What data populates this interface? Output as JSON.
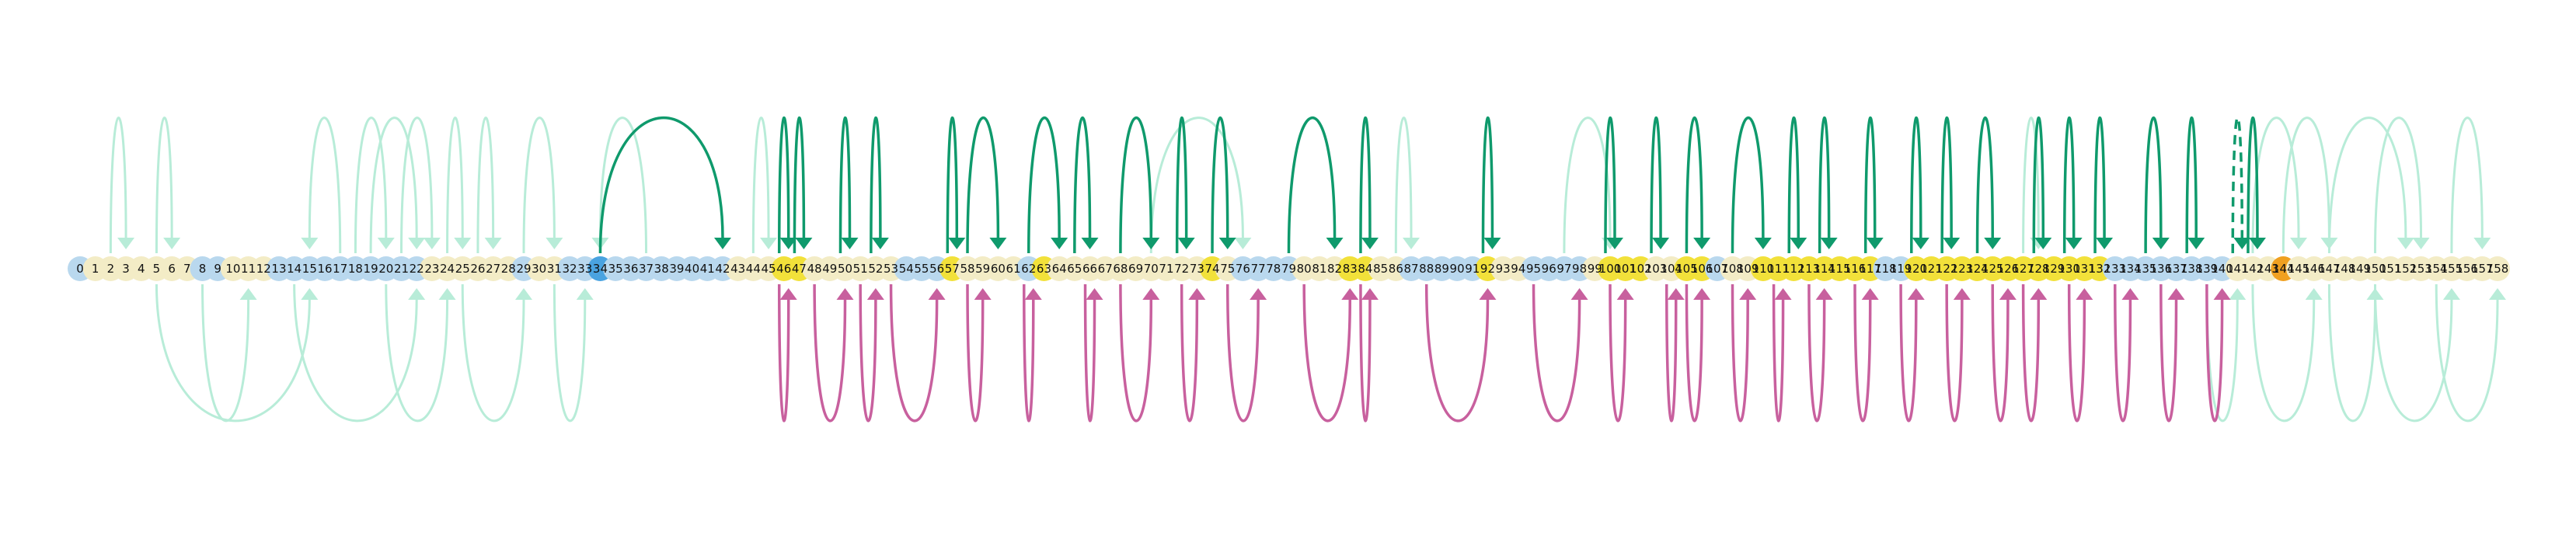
{
  "diagram": {
    "type": "token-arc-diagram",
    "node_labels": [
      "0",
      "1",
      "2",
      "3",
      "4",
      "5",
      "6",
      "7",
      "8",
      "9",
      "10",
      "11",
      "12",
      "13",
      "14",
      "15",
      "16",
      "17",
      "18",
      "19",
      "20",
      "21",
      "22",
      "23",
      "24",
      "25",
      "26",
      "27",
      "28",
      "29",
      "30",
      "31",
      "32",
      "33",
      "34",
      "35",
      "36",
      "37",
      "38",
      "39",
      "40",
      "41",
      "42",
      "43",
      "44",
      "45",
      "46",
      "47",
      "48",
      "49",
      "50",
      "51",
      "52",
      "53",
      "54",
      "55",
      "56",
      "57",
      "58",
      "59",
      "60",
      "61",
      "62",
      "63",
      "64",
      "65",
      "66",
      "67",
      "68",
      "69",
      "70",
      "71",
      "72",
      "73",
      "74",
      "75",
      "76",
      "77",
      "78",
      "79",
      "80",
      "81",
      "82",
      "83",
      "84",
      "85",
      "86",
      "87",
      "88",
      "89",
      "90",
      "91",
      "92",
      "93",
      "94",
      "95",
      "96",
      "97",
      "98",
      "99",
      "100",
      "101",
      "102",
      "103",
      "104",
      "105",
      "106",
      "107",
      "108",
      "109",
      "110",
      "111",
      "112",
      "113",
      "114",
      "115",
      "116",
      "117",
      "118",
      "119",
      "120",
      "121",
      "122",
      "123",
      "124",
      "125",
      "126",
      "127",
      "128",
      "129",
      "130",
      "131",
      "132",
      "133",
      "134",
      "135",
      "136",
      "137",
      "138",
      "139",
      "140",
      "141",
      "142",
      "143",
      "144",
      "145",
      "146",
      "147",
      "148",
      "149",
      "150",
      "151",
      "152",
      "153",
      "154",
      "155",
      "156",
      "157",
      "158"
    ],
    "node_fill": {
      "blue": [
        0,
        8,
        9,
        13,
        14,
        15,
        16,
        17,
        18,
        19,
        20,
        21,
        22,
        29,
        32,
        33,
        35,
        36,
        37,
        38,
        39,
        40,
        41,
        42,
        54,
        55,
        56,
        62,
        76,
        77,
        78,
        79,
        87,
        88,
        89,
        90,
        91,
        95,
        96,
        97,
        98,
        107,
        118,
        119,
        133,
        134,
        135,
        136,
        137,
        138,
        139,
        140
      ],
      "cream": [
        1,
        2,
        3,
        4,
        5,
        6,
        7,
        10,
        11,
        12,
        23,
        24,
        25,
        26,
        27,
        28,
        30,
        31,
        43,
        44,
        45,
        48,
        49,
        50,
        51,
        52,
        53,
        58,
        59,
        60,
        61,
        64,
        65,
        66,
        67,
        68,
        69,
        70,
        71,
        72,
        73,
        74,
        75,
        80,
        81,
        82,
        83,
        84,
        85,
        86,
        92,
        93,
        94,
        99,
        100,
        101,
        102,
        103,
        104,
        105,
        106,
        108,
        109,
        110,
        111,
        112,
        113,
        114,
        115,
        116,
        117,
        120,
        121,
        122,
        123,
        124,
        125,
        126,
        127,
        128,
        129,
        130,
        131,
        132,
        141,
        142,
        143,
        145,
        146,
        147,
        148,
        149,
        150,
        151,
        152,
        153,
        154,
        155,
        156,
        157,
        158
      ],
      "yellow": [
        46,
        47,
        57,
        63,
        74,
        83,
        84,
        92,
        100,
        101,
        102,
        105,
        106,
        110,
        111,
        112,
        113,
        114,
        115,
        116,
        117,
        120,
        121,
        122,
        123,
        124,
        125,
        126,
        127,
        128,
        129,
        130,
        131,
        132
      ],
      "bright_blue": [
        34
      ],
      "orange": [
        144
      ]
    },
    "colors": {
      "blue": "#b9d8ee",
      "cream": "#f3ecc6",
      "yellow": "#f2e13a",
      "bright_blue": "#4aa3e0",
      "orange": "#f0a020",
      "arc_dark_green": "#0f9a6c",
      "arc_dark_pink": "#c8609e",
      "arc_light_green": "#b8ecd8",
      "arc_light_pink": "#f0c8d6"
    },
    "arcs_above": [
      [
        34,
        42,
        "dark"
      ],
      [
        46,
        46,
        "dark"
      ],
      [
        47,
        47,
        "dark"
      ],
      [
        50,
        50,
        "dark"
      ],
      [
        52,
        52,
        "dark"
      ],
      [
        57,
        57,
        "dark"
      ],
      [
        58,
        60,
        "dark"
      ],
      [
        62,
        64,
        "dark"
      ],
      [
        65,
        66,
        "dark"
      ],
      [
        68,
        70,
        "dark"
      ],
      [
        72,
        72,
        "dark"
      ],
      [
        74,
        75,
        "dark"
      ],
      [
        79,
        82,
        "dark"
      ],
      [
        84,
        84,
        "dark"
      ],
      [
        92,
        92,
        "dark"
      ],
      [
        100,
        100,
        "dark"
      ],
      [
        103,
        103,
        "dark"
      ],
      [
        105,
        106,
        "dark"
      ],
      [
        108,
        110,
        "dark"
      ],
      [
        112,
        112,
        "dark"
      ],
      [
        114,
        114,
        "dark"
      ],
      [
        117,
        117,
        "dark"
      ],
      [
        120,
        120,
        "dark"
      ],
      [
        122,
        122,
        "dark"
      ],
      [
        124,
        125,
        "dark"
      ],
      [
        128,
        128,
        "dark"
      ],
      [
        130,
        130,
        "dark"
      ],
      [
        132,
        132,
        "dark"
      ],
      [
        135,
        136,
        "dark"
      ],
      [
        138,
        138,
        "dark"
      ],
      [
        141,
        141,
        "dark"
      ],
      [
        142,
        142,
        "dark"
      ],
      [
        2,
        3,
        "light"
      ],
      [
        5,
        6,
        "light"
      ],
      [
        17,
        15,
        "light"
      ],
      [
        18,
        20,
        "light"
      ],
      [
        19,
        22,
        "light"
      ],
      [
        21,
        23,
        "light"
      ],
      [
        24,
        25,
        "light"
      ],
      [
        26,
        27,
        "light"
      ],
      [
        29,
        31,
        "light"
      ],
      [
        37,
        34,
        "light"
      ],
      [
        44,
        45,
        "light"
      ],
      [
        70,
        76,
        "light"
      ],
      [
        86,
        87,
        "light"
      ],
      [
        97,
        100,
        "light"
      ],
      [
        127,
        128,
        "light"
      ],
      [
        142,
        145,
        "light"
      ],
      [
        144,
        147,
        "light"
      ],
      [
        147,
        152,
        "light"
      ],
      [
        150,
        153,
        "light"
      ],
      [
        155,
        157,
        "light"
      ]
    ],
    "arcs_below": [
      [
        46,
        46,
        "dark"
      ],
      [
        48,
        50,
        "dark"
      ],
      [
        51,
        52,
        "dark"
      ],
      [
        53,
        56,
        "dark"
      ],
      [
        58,
        59,
        "dark"
      ],
      [
        62,
        62,
        "dark"
      ],
      [
        66,
        66,
        "dark"
      ],
      [
        68,
        70,
        "dark"
      ],
      [
        72,
        73,
        "dark"
      ],
      [
        75,
        77,
        "dark"
      ],
      [
        80,
        83,
        "dark"
      ],
      [
        84,
        84,
        "dark"
      ],
      [
        88,
        92,
        "dark"
      ],
      [
        95,
        98,
        "dark"
      ],
      [
        100,
        101,
        "dark"
      ],
      [
        104,
        104,
        "dark"
      ],
      [
        105,
        106,
        "dark"
      ],
      [
        108,
        109,
        "dark"
      ],
      [
        111,
        111,
        "dark"
      ],
      [
        113,
        114,
        "dark"
      ],
      [
        116,
        117,
        "dark"
      ],
      [
        119,
        120,
        "dark"
      ],
      [
        122,
        123,
        "dark"
      ],
      [
        125,
        126,
        "dark"
      ],
      [
        127,
        128,
        "dark"
      ],
      [
        130,
        131,
        "dark"
      ],
      [
        133,
        134,
        "dark"
      ],
      [
        136,
        137,
        "dark"
      ],
      [
        139,
        140,
        "dark"
      ],
      [
        5,
        15,
        "light"
      ],
      [
        8,
        11,
        "light"
      ],
      [
        14,
        22,
        "light"
      ],
      [
        20,
        24,
        "light"
      ],
      [
        25,
        29,
        "light"
      ],
      [
        31,
        33,
        "light"
      ],
      [
        139,
        141,
        "light"
      ],
      [
        142,
        146,
        "light"
      ],
      [
        147,
        150,
        "light"
      ],
      [
        150,
        155,
        "light"
      ],
      [
        154,
        158,
        "light"
      ]
    ]
  }
}
